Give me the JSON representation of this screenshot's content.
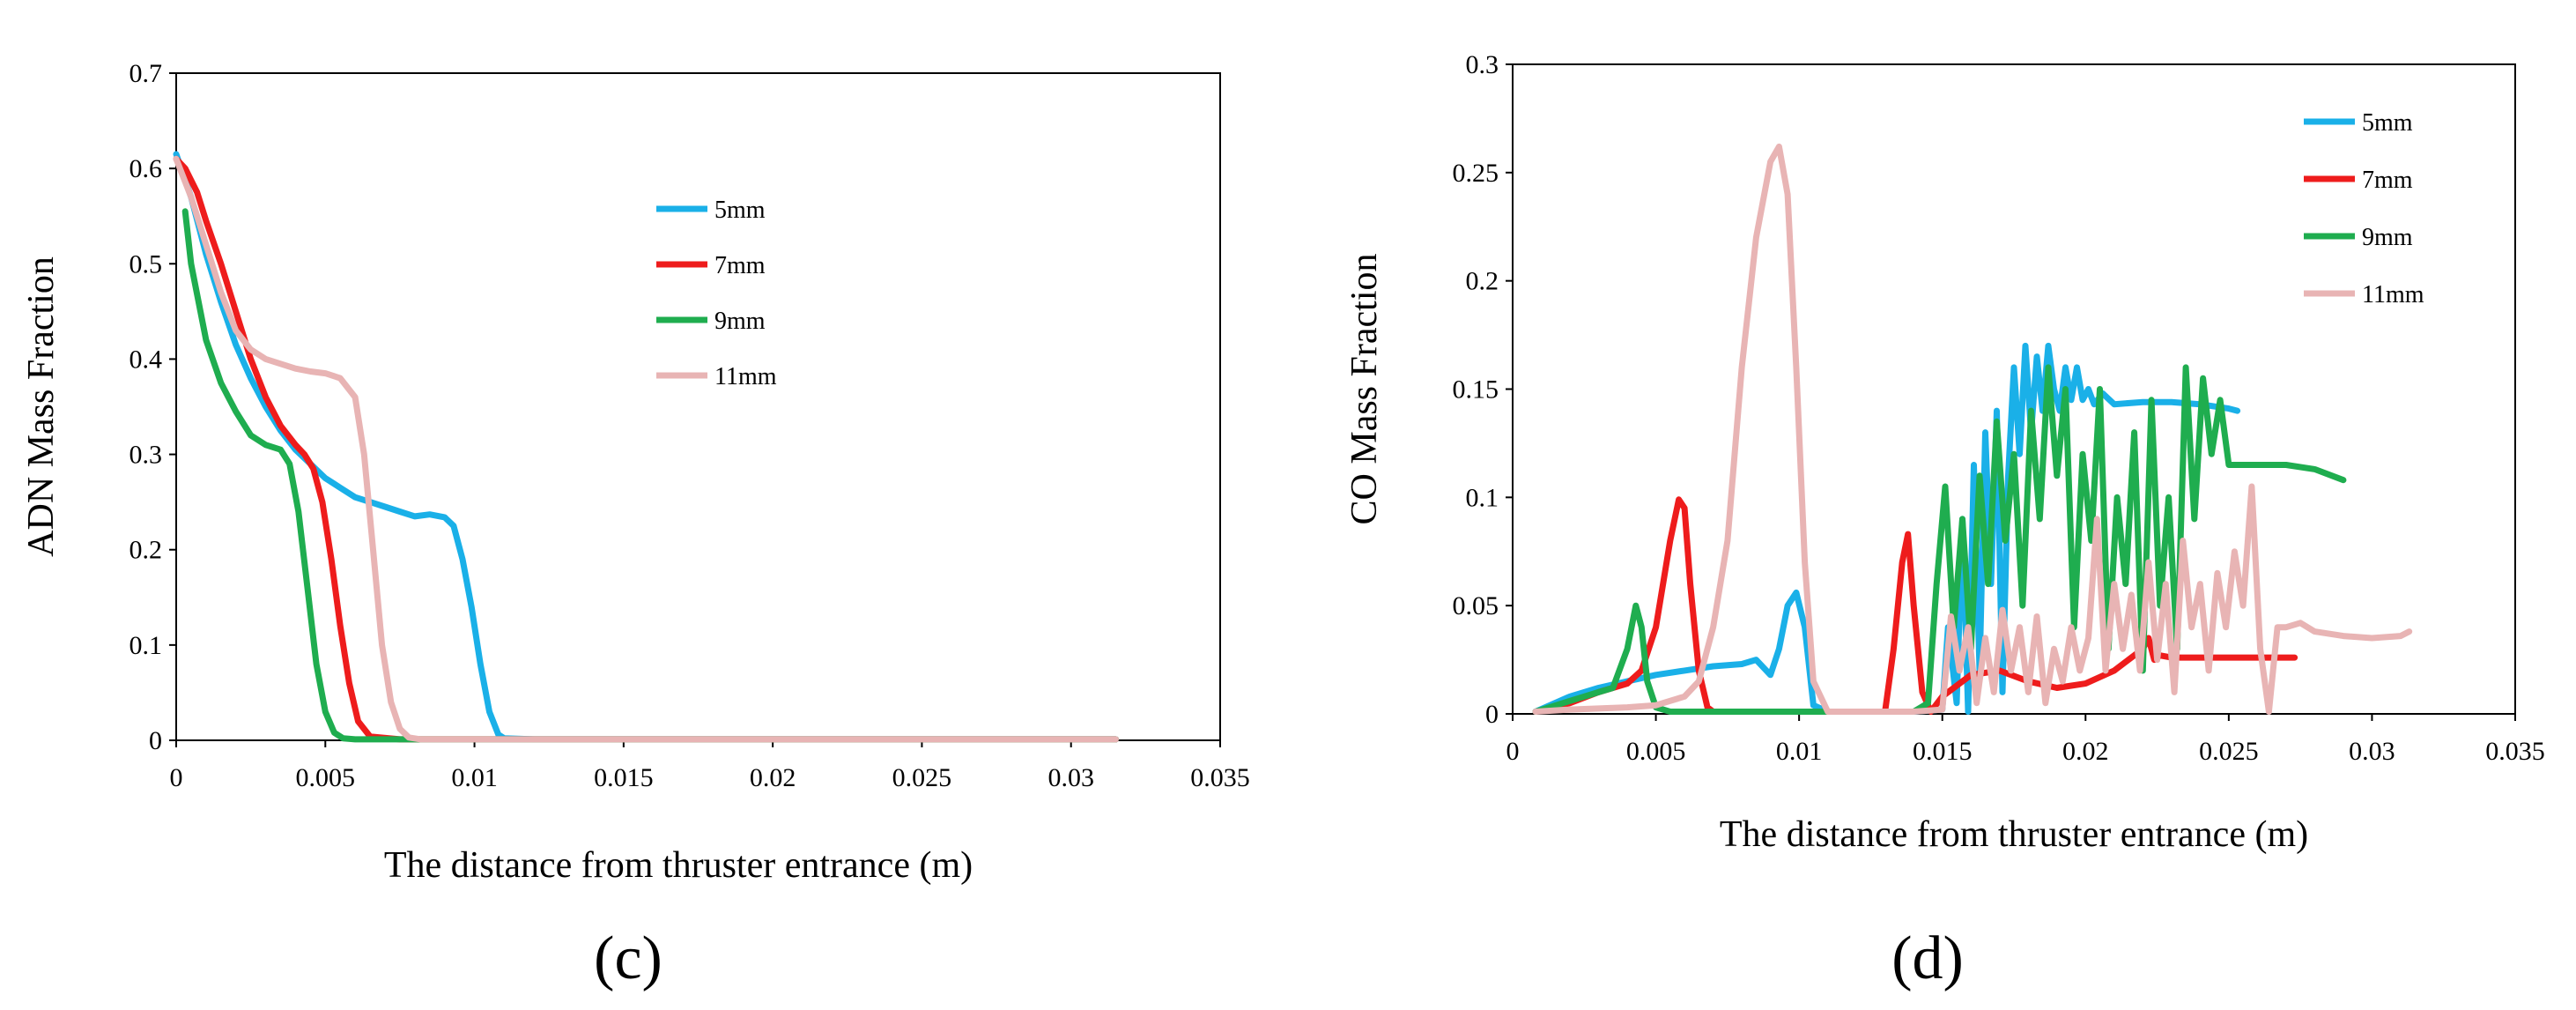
{
  "chart_data": [
    {
      "type": "line",
      "panel": "c",
      "title": "",
      "xlabel": "The distance from thruster entrance (m)",
      "ylabel": "ADN Mass Fraction",
      "xlim": [
        0,
        0.035
      ],
      "ylim": [
        0,
        0.7
      ],
      "xticks": [
        "0",
        "0.005",
        "0.01",
        "0.015",
        "0.02",
        "0.025",
        "0.03",
        "0.035"
      ],
      "yticks": [
        "0",
        "0.1",
        "0.2",
        "0.3",
        "0.4",
        "0.5",
        "0.6",
        "0.7"
      ],
      "legend_position": "top-center",
      "series": [
        {
          "name": "5mm",
          "color": "#1ab0e8",
          "x": [
            0,
            0.0005,
            0.001,
            0.0015,
            0.002,
            0.0025,
            0.003,
            0.0035,
            0.004,
            0.0045,
            0.005,
            0.0055,
            0.006,
            0.0065,
            0.007,
            0.0075,
            0.008,
            0.0085,
            0.009,
            0.0093,
            0.0096,
            0.0099,
            0.0102,
            0.0105,
            0.0108,
            0.011,
            0.012,
            0.015,
            0.02,
            0.025,
            0.03,
            0.0315
          ],
          "y": [
            0.615,
            0.57,
            0.51,
            0.46,
            0.415,
            0.38,
            0.35,
            0.325,
            0.305,
            0.29,
            0.275,
            0.265,
            0.255,
            0.25,
            0.245,
            0.24,
            0.235,
            0.237,
            0.234,
            0.225,
            0.19,
            0.14,
            0.08,
            0.03,
            0.006,
            0.002,
            0.001,
            0.001,
            0.001,
            0.001,
            0.001,
            0.001
          ]
        },
        {
          "name": "7mm",
          "color": "#ee1c1c",
          "x": [
            0,
            0.0003,
            0.0007,
            0.001,
            0.0015,
            0.002,
            0.0025,
            0.003,
            0.0035,
            0.004,
            0.0043,
            0.0046,
            0.0049,
            0.0052,
            0.0055,
            0.0058,
            0.0061,
            0.0065,
            0.0075,
            0.01,
            0.015,
            0.02,
            0.025,
            0.03,
            0.0315
          ],
          "y": [
            0.61,
            0.6,
            0.575,
            0.545,
            0.5,
            0.45,
            0.4,
            0.36,
            0.33,
            0.31,
            0.3,
            0.285,
            0.25,
            0.19,
            0.12,
            0.06,
            0.02,
            0.004,
            0.001,
            0.001,
            0.001,
            0.001,
            0.001,
            0.001,
            0.001
          ]
        },
        {
          "name": "9mm",
          "color": "#1fad4f",
          "x": [
            0.0003,
            0.0005,
            0.001,
            0.0015,
            0.002,
            0.0025,
            0.003,
            0.0035,
            0.0038,
            0.0041,
            0.0044,
            0.0047,
            0.005,
            0.0053,
            0.0056,
            0.006,
            0.007,
            0.01,
            0.015,
            0.02,
            0.025,
            0.03,
            0.0315
          ],
          "y": [
            0.555,
            0.5,
            0.42,
            0.375,
            0.345,
            0.32,
            0.31,
            0.305,
            0.29,
            0.24,
            0.16,
            0.08,
            0.03,
            0.008,
            0.002,
            0.001,
            0.001,
            0.001,
            0.001,
            0.001,
            0.001,
            0.001,
            0.001
          ]
        },
        {
          "name": "11mm",
          "color": "#e8b4b4",
          "x": [
            0,
            0.0005,
            0.001,
            0.0015,
            0.002,
            0.0025,
            0.003,
            0.0035,
            0.004,
            0.0045,
            0.005,
            0.0055,
            0.006,
            0.0063,
            0.0066,
            0.0069,
            0.0072,
            0.0075,
            0.0078,
            0.0082,
            0.009,
            0.01,
            0.015,
            0.02,
            0.025,
            0.03,
            0.0315
          ],
          "y": [
            0.61,
            0.57,
            0.52,
            0.47,
            0.43,
            0.41,
            0.4,
            0.395,
            0.39,
            0.387,
            0.385,
            0.38,
            0.36,
            0.3,
            0.2,
            0.1,
            0.04,
            0.012,
            0.003,
            0.001,
            0.001,
            0.001,
            0.001,
            0.001,
            0.001,
            0.001,
            0.001
          ]
        }
      ]
    },
    {
      "type": "line",
      "panel": "d",
      "title": "",
      "xlabel": "The distance from thruster entrance (m)",
      "ylabel": "CO Mass Fraction",
      "xlim": [
        0,
        0.035
      ],
      "ylim": [
        0,
        0.3
      ],
      "xticks": [
        "0",
        "0.005",
        "0.01",
        "0.015",
        "0.02",
        "0.025",
        "0.03",
        "0.035"
      ],
      "yticks": [
        "0",
        "0.05",
        "0.1",
        "0.15",
        "0.2",
        "0.25",
        "0.3"
      ],
      "legend_position": "top-right",
      "series": [
        {
          "name": "5mm",
          "color": "#1ab0e8",
          "x": [
            0.0008,
            0.002,
            0.003,
            0.004,
            0.005,
            0.006,
            0.007,
            0.008,
            0.0085,
            0.009,
            0.0093,
            0.0096,
            0.0099,
            0.0102,
            0.0105,
            0.011,
            0.012,
            0.013,
            0.014,
            0.015,
            0.0152,
            0.0155,
            0.0157,
            0.0159,
            0.0161,
            0.0163,
            0.0165,
            0.0167,
            0.0169,
            0.0171,
            0.0173,
            0.0175,
            0.0177,
            0.0179,
            0.0181,
            0.0183,
            0.0185,
            0.0187,
            0.0189,
            0.0191,
            0.0193,
            0.0195,
            0.0197,
            0.0199,
            0.0201,
            0.0203,
            0.0206,
            0.021,
            0.022,
            0.023,
            0.024,
            0.025,
            0.0253
          ],
          "y": [
            0.001,
            0.008,
            0.012,
            0.015,
            0.018,
            0.02,
            0.022,
            0.023,
            0.025,
            0.018,
            0.03,
            0.05,
            0.056,
            0.04,
            0.004,
            0.001,
            0.001,
            0.001,
            0.001,
            0.002,
            0.04,
            0.005,
            0.09,
            0.001,
            0.115,
            0.02,
            0.13,
            0.06,
            0.14,
            0.01,
            0.11,
            0.16,
            0.12,
            0.17,
            0.13,
            0.165,
            0.14,
            0.17,
            0.15,
            0.14,
            0.16,
            0.145,
            0.16,
            0.145,
            0.15,
            0.143,
            0.148,
            0.143,
            0.144,
            0.144,
            0.143,
            0.141,
            0.14
          ]
        },
        {
          "name": "7mm",
          "color": "#ee1c1c",
          "x": [
            0.0008,
            0.002,
            0.003,
            0.004,
            0.0045,
            0.005,
            0.0055,
            0.0058,
            0.006,
            0.0062,
            0.0065,
            0.0068,
            0.007,
            0.0075,
            0.008,
            0.009,
            0.01,
            0.011,
            0.012,
            0.013,
            0.0133,
            0.0136,
            0.0138,
            0.014,
            0.0143,
            0.0146,
            0.015,
            0.016,
            0.017,
            0.018,
            0.019,
            0.02,
            0.021,
            0.022,
            0.0222,
            0.0224,
            0.0226,
            0.023,
            0.024,
            0.025,
            0.026,
            0.027,
            0.0273
          ],
          "y": [
            0.001,
            0.005,
            0.01,
            0.014,
            0.02,
            0.04,
            0.08,
            0.099,
            0.095,
            0.06,
            0.02,
            0.003,
            0.001,
            0.001,
            0.001,
            0.001,
            0.001,
            0.001,
            0.001,
            0.001,
            0.03,
            0.07,
            0.083,
            0.05,
            0.01,
            0.001,
            0.008,
            0.018,
            0.02,
            0.015,
            0.012,
            0.014,
            0.02,
            0.03,
            0.035,
            0.025,
            0.027,
            0.026,
            0.026,
            0.026,
            0.026,
            0.026,
            0.026
          ]
        },
        {
          "name": "9mm",
          "color": "#1fad4f",
          "x": [
            0.0008,
            0.002,
            0.003,
            0.0035,
            0.004,
            0.0043,
            0.0045,
            0.0047,
            0.005,
            0.0055,
            0.006,
            0.007,
            0.008,
            0.009,
            0.01,
            0.0115,
            0.0125,
            0.014,
            0.0145,
            0.0148,
            0.0151,
            0.0154,
            0.0157,
            0.016,
            0.0163,
            0.0166,
            0.0169,
            0.0172,
            0.0175,
            0.0178,
            0.0181,
            0.0184,
            0.0187,
            0.019,
            0.0193,
            0.0196,
            0.0199,
            0.0202,
            0.0205,
            0.0208,
            0.0211,
            0.0214,
            0.0217,
            0.022,
            0.0223,
            0.0226,
            0.0229,
            0.0232,
            0.0235,
            0.0238,
            0.0241,
            0.0244,
            0.0247,
            0.025,
            0.026,
            0.027,
            0.028,
            0.029
          ],
          "y": [
            0.001,
            0.006,
            0.01,
            0.012,
            0.03,
            0.05,
            0.04,
            0.015,
            0.003,
            0.001,
            0.001,
            0.001,
            0.001,
            0.001,
            0.001,
            0.001,
            0.001,
            0.001,
            0.005,
            0.06,
            0.105,
            0.04,
            0.09,
            0.03,
            0.11,
            0.06,
            0.135,
            0.08,
            0.12,
            0.05,
            0.14,
            0.09,
            0.16,
            0.11,
            0.15,
            0.04,
            0.12,
            0.08,
            0.15,
            0.03,
            0.1,
            0.06,
            0.13,
            0.02,
            0.145,
            0.05,
            0.1,
            0.03,
            0.16,
            0.09,
            0.155,
            0.12,
            0.145,
            0.115,
            0.115,
            0.115,
            0.113,
            0.108
          ]
        },
        {
          "name": "11mm",
          "color": "#e8b4b4",
          "x": [
            0.0008,
            0.002,
            0.004,
            0.005,
            0.006,
            0.0065,
            0.007,
            0.0075,
            0.008,
            0.0085,
            0.009,
            0.0093,
            0.0096,
            0.0099,
            0.0102,
            0.0105,
            0.011,
            0.012,
            0.013,
            0.014,
            0.015,
            0.0153,
            0.0156,
            0.0159,
            0.0162,
            0.0165,
            0.0168,
            0.0171,
            0.0174,
            0.0177,
            0.018,
            0.0183,
            0.0186,
            0.0189,
            0.0192,
            0.0195,
            0.0198,
            0.0201,
            0.0204,
            0.0207,
            0.021,
            0.0213,
            0.0216,
            0.0219,
            0.0222,
            0.0225,
            0.0228,
            0.0231,
            0.0234,
            0.0237,
            0.024,
            0.0243,
            0.0246,
            0.0249,
            0.0252,
            0.0255,
            0.0258,
            0.0261,
            0.0264,
            0.0267,
            0.027,
            0.0275,
            0.028,
            0.029,
            0.03,
            0.031,
            0.0313
          ],
          "y": [
            0.001,
            0.002,
            0.003,
            0.004,
            0.008,
            0.015,
            0.04,
            0.08,
            0.16,
            0.22,
            0.255,
            0.262,
            0.24,
            0.16,
            0.07,
            0.015,
            0.001,
            0.001,
            0.001,
            0.001,
            0.002,
            0.045,
            0.02,
            0.04,
            0.005,
            0.035,
            0.01,
            0.048,
            0.02,
            0.04,
            0.01,
            0.045,
            0.005,
            0.03,
            0.015,
            0.04,
            0.02,
            0.035,
            0.09,
            0.02,
            0.06,
            0.03,
            0.055,
            0.02,
            0.07,
            0.025,
            0.06,
            0.01,
            0.08,
            0.04,
            0.06,
            0.02,
            0.065,
            0.04,
            0.075,
            0.05,
            0.105,
            0.03,
            0.001,
            0.04,
            0.04,
            0.042,
            0.038,
            0.036,
            0.035,
            0.036,
            0.038
          ]
        }
      ]
    }
  ],
  "panel_labels": [
    "(c)",
    "(d)"
  ]
}
